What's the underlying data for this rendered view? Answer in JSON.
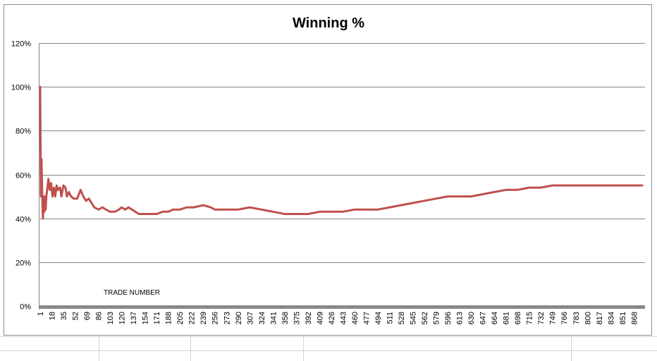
{
  "chart_data": {
    "type": "line",
    "title": "Winning %",
    "annotation": "TRADE NUMBER",
    "ylim": [
      0,
      1.2
    ],
    "ytick_labels": [
      "0%",
      "20%",
      "40%",
      "60%",
      "80%",
      "100%",
      "120%"
    ],
    "xlim": [
      1,
      880
    ],
    "xtick_labels": [
      "1",
      "18",
      "35",
      "52",
      "69",
      "86",
      "103",
      "120",
      "137",
      "154",
      "171",
      "188",
      "205",
      "222",
      "239",
      "256",
      "273",
      "290",
      "307",
      "324",
      "341",
      "358",
      "375",
      "392",
      "409",
      "426",
      "443",
      "460",
      "477",
      "494",
      "511",
      "528",
      "545",
      "562",
      "579",
      "596",
      "613",
      "630",
      "647",
      "664",
      "681",
      "698",
      "715",
      "732",
      "749",
      "766",
      "783",
      "800",
      "817",
      "834",
      "851",
      "868"
    ],
    "grid": "horizontal",
    "legend": "none",
    "series": [
      {
        "color": "#C0504D",
        "points": [
          [
            1,
            1.0
          ],
          [
            2,
            0.5
          ],
          [
            3,
            0.67
          ],
          [
            4,
            0.5
          ],
          [
            5,
            0.4
          ],
          [
            6,
            0.5
          ],
          [
            7,
            0.43
          ],
          [
            8,
            0.5
          ],
          [
            9,
            0.44
          ],
          [
            10,
            0.5
          ],
          [
            12,
            0.55
          ],
          [
            13,
            0.58
          ],
          [
            15,
            0.53
          ],
          [
            17,
            0.56
          ],
          [
            19,
            0.5
          ],
          [
            21,
            0.54
          ],
          [
            23,
            0.5
          ],
          [
            25,
            0.55
          ],
          [
            27,
            0.53
          ],
          [
            30,
            0.54
          ],
          [
            32,
            0.5
          ],
          [
            35,
            0.55
          ],
          [
            38,
            0.54
          ],
          [
            40,
            0.5
          ],
          [
            43,
            0.52
          ],
          [
            46,
            0.5
          ],
          [
            50,
            0.49
          ],
          [
            55,
            0.49
          ],
          [
            60,
            0.53
          ],
          [
            64,
            0.5
          ],
          [
            68,
            0.48
          ],
          [
            72,
            0.49
          ],
          [
            76,
            0.47
          ],
          [
            80,
            0.45
          ],
          [
            86,
            0.44
          ],
          [
            92,
            0.45
          ],
          [
            97,
            0.44
          ],
          [
            103,
            0.43
          ],
          [
            110,
            0.43
          ],
          [
            116,
            0.44
          ],
          [
            120,
            0.45
          ],
          [
            125,
            0.44
          ],
          [
            130,
            0.45
          ],
          [
            135,
            0.44
          ],
          [
            140,
            0.43
          ],
          [
            145,
            0.42
          ],
          [
            154,
            0.42
          ],
          [
            160,
            0.42
          ],
          [
            171,
            0.42
          ],
          [
            180,
            0.43
          ],
          [
            188,
            0.43
          ],
          [
            195,
            0.44
          ],
          [
            205,
            0.44
          ],
          [
            215,
            0.45
          ],
          [
            225,
            0.45
          ],
          [
            239,
            0.46
          ],
          [
            250,
            0.45
          ],
          [
            256,
            0.44
          ],
          [
            273,
            0.44
          ],
          [
            285,
            0.44
          ],
          [
            290,
            0.44
          ],
          [
            307,
            0.45
          ],
          [
            324,
            0.44
          ],
          [
            341,
            0.43
          ],
          [
            358,
            0.42
          ],
          [
            375,
            0.42
          ],
          [
            392,
            0.42
          ],
          [
            409,
            0.43
          ],
          [
            426,
            0.43
          ],
          [
            443,
            0.43
          ],
          [
            460,
            0.44
          ],
          [
            477,
            0.44
          ],
          [
            494,
            0.44
          ],
          [
            511,
            0.45
          ],
          [
            528,
            0.46
          ],
          [
            545,
            0.47
          ],
          [
            562,
            0.48
          ],
          [
            579,
            0.49
          ],
          [
            596,
            0.5
          ],
          [
            613,
            0.5
          ],
          [
            630,
            0.5
          ],
          [
            647,
            0.51
          ],
          [
            664,
            0.52
          ],
          [
            681,
            0.53
          ],
          [
            698,
            0.53
          ],
          [
            715,
            0.54
          ],
          [
            732,
            0.54
          ],
          [
            749,
            0.55
          ],
          [
            766,
            0.55
          ],
          [
            783,
            0.55
          ],
          [
            800,
            0.55
          ],
          [
            817,
            0.55
          ],
          [
            834,
            0.55
          ],
          [
            851,
            0.55
          ],
          [
            868,
            0.55
          ],
          [
            880,
            0.55
          ]
        ]
      }
    ]
  }
}
